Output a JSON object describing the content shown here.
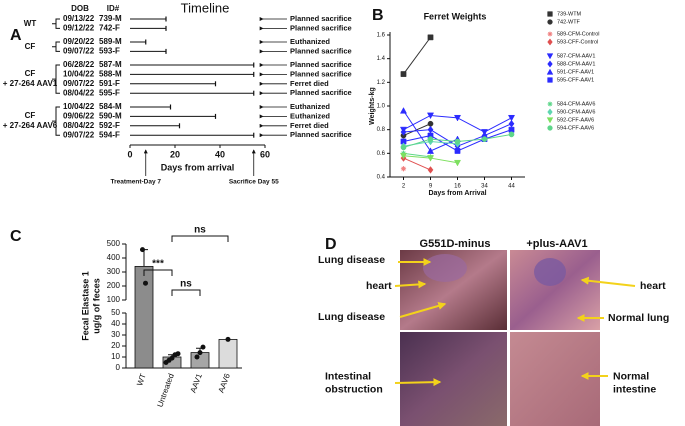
{
  "panel_a": {
    "label": "A",
    "title": "Timeline",
    "headers": {
      "dob": "DOB",
      "id": "ID#"
    },
    "groups": [
      {
        "name": [
          "WT"
        ],
        "rows": [
          {
            "dob": "09/13/22",
            "id": "739-M",
            "end_day": 16,
            "outcome": "Planned sacrifice"
          },
          {
            "dob": "09/12/22",
            "id": "742-F",
            "end_day": 16,
            "outcome": "Planned sacrifice"
          }
        ]
      },
      {
        "name": [
          "CF"
        ],
        "rows": [
          {
            "dob": "09/20/22",
            "id": "589-M",
            "end_day": 7,
            "outcome": "Euthanized"
          },
          {
            "dob": "09/07/22",
            "id": "593-F",
            "end_day": 16,
            "outcome": "Planned sacrifice"
          }
        ]
      },
      {
        "name": [
          "CF",
          "+ 27-264 AAV1"
        ],
        "rows": [
          {
            "dob": "06/28/22",
            "id": "587-M",
            "end_day": 55,
            "outcome": "Planned sacrifice"
          },
          {
            "dob": "10/04/22",
            "id": "588-M",
            "end_day": 55,
            "outcome": "Planned sacrifice"
          },
          {
            "dob": "09/07/22",
            "id": "591-F",
            "end_day": 38,
            "outcome": "Ferret died"
          },
          {
            "dob": "08/04/22",
            "id": "595-F",
            "end_day": 55,
            "outcome": "Planned sacrifice"
          }
        ]
      },
      {
        "name": [
          "CF",
          "+ 27-264 AAV6"
        ],
        "rows": [
          {
            "dob": "10/04/22",
            "id": "584-M",
            "end_day": 18,
            "outcome": "Euthanized"
          },
          {
            "dob": "09/06/22",
            "id": "590-M",
            "end_day": 38,
            "outcome": "Euthanized"
          },
          {
            "dob": "08/04/22",
            "id": "592-F",
            "end_day": 22,
            "outcome": "Ferret died"
          },
          {
            "dob": "09/07/22",
            "id": "594-F",
            "end_day": 55,
            "outcome": "Planned sacrifice"
          }
        ]
      }
    ],
    "xlabel": "Days from arrival",
    "xlim": [
      0,
      60
    ],
    "xticks": [
      0,
      20,
      40,
      60
    ],
    "markers": [
      {
        "day": 7,
        "label": "Treatment-Day 7"
      },
      {
        "day": 55,
        "label": "Sacrifice Day 55"
      }
    ]
  },
  "chart_data": [
    {
      "type": "line",
      "panel": "B",
      "title": "Ferret Weights",
      "xlabel": "Days from Arrival",
      "ylabel": "Weights-kg",
      "categories": [
        "2",
        "9",
        "16",
        "34",
        "44"
      ],
      "ylim": [
        0.4,
        1.6
      ],
      "yticks": [
        0.4,
        0.6,
        0.8,
        {
          "value": 1,
          "label": "1.0"
        },
        1.2,
        1.4,
        1.6
      ],
      "series": [
        {
          "name": "739-WTM",
          "color": "#333333",
          "marker": "square",
          "values": [
            1.27,
            1.58,
            null,
            null,
            null
          ]
        },
        {
          "name": "742-WTF",
          "color": "#333333",
          "marker": "circle",
          "values": [
            0.75,
            0.85,
            null,
            null,
            null
          ]
        },
        {
          "name": "589-CFM-Control",
          "color": "#f08080",
          "marker": "star",
          "values": [
            0.47,
            null,
            null,
            null,
            null
          ]
        },
        {
          "name": "593-CFF-Control",
          "color": "#e05050",
          "marker": "diamond",
          "values": [
            0.56,
            0.46,
            null,
            null,
            null
          ]
        },
        {
          "name": "587-CFM-AAV1",
          "color": "#2b2bff",
          "marker": "triangle-down",
          "values": [
            0.8,
            0.92,
            0.9,
            0.78,
            0.9
          ]
        },
        {
          "name": "588-CFM-AAV1",
          "color": "#2b2bff",
          "marker": "diamond",
          "values": [
            0.78,
            0.8,
            0.66,
            0.75,
            0.85
          ]
        },
        {
          "name": "591-CFF-AAV1",
          "color": "#2b2bff",
          "marker": "triangle",
          "values": [
            0.96,
            0.62,
            0.72,
            null,
            null
          ]
        },
        {
          "name": "595-CFF-AAV1",
          "color": "#2b2bff",
          "marker": "square",
          "values": [
            0.7,
            0.75,
            0.62,
            0.72,
            0.8
          ]
        },
        {
          "name": "584-CFM-AAV6",
          "color": "#5ed68a",
          "marker": "star",
          "values": [
            0.6,
            0.57,
            null,
            null,
            null
          ]
        },
        {
          "name": "590-CFM-AAV6",
          "color": "#5ed6b0",
          "marker": "diamond",
          "values": [
            0.66,
            0.7,
            0.68,
            null,
            null
          ]
        },
        {
          "name": "592-CFF-AAV6",
          "color": "#7ee060",
          "marker": "triangle-down",
          "values": [
            0.58,
            0.56,
            0.52,
            null,
            null
          ]
        },
        {
          "name": "594-CFF-AAV6",
          "color": "#5ed68a",
          "marker": "circle",
          "values": [
            0.65,
            0.72,
            0.7,
            0.72,
            0.76
          ]
        }
      ]
    },
    {
      "type": "bar",
      "panel": "C",
      "ylabel": [
        "Fecal Elastase 1",
        "ug/g of feces"
      ],
      "categories": [
        "WT",
        "Untreated",
        "AAV1",
        "AAV6"
      ],
      "values": [
        340,
        10,
        14,
        26
      ],
      "errors": [
        120,
        2,
        4,
        null
      ],
      "points": [
        [
          460,
          220
        ],
        [
          5,
          7,
          9,
          12,
          13
        ],
        [
          10,
          14,
          19
        ],
        [
          26
        ]
      ],
      "colors": [
        "#8c8c8c",
        "#a6a6a6",
        "#a6a6a6",
        "#dcdcdc"
      ],
      "ylim": [
        0,
        500
      ],
      "y_break": [
        50,
        100
      ],
      "yticks": [
        0,
        10,
        20,
        30,
        40,
        50,
        100,
        200,
        300,
        400,
        500
      ],
      "significance": [
        "***",
        "ns",
        "ns"
      ]
    }
  ],
  "panel_d": {
    "label": "D",
    "columns": [
      "G551D-minus",
      "+plus-AAV1"
    ],
    "annotations": [
      [
        "Lung disease"
      ],
      [
        "heart"
      ],
      [
        "Lung disease"
      ],
      [
        "heart"
      ],
      [
        "Normal lung"
      ],
      [
        "Intestinal",
        "obstruction"
      ],
      [
        "Normal",
        "intestine"
      ]
    ]
  }
}
